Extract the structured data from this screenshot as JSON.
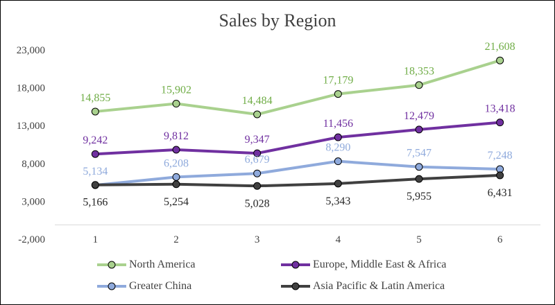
{
  "chart_data": {
    "type": "line",
    "title": "Sales by Region",
    "x": [
      "1",
      "2",
      "3",
      "4",
      "5",
      "6"
    ],
    "ylim": [
      -2000,
      23000
    ],
    "yticks": [
      "-2,000",
      "3,000",
      "8,000",
      "13,000",
      "18,000",
      "23,000"
    ],
    "ytick_values": [
      -2000,
      3000,
      8000,
      13000,
      18000,
      23000
    ],
    "grid": false,
    "legend_position": "bottom",
    "series": [
      {
        "name": "North America",
        "color": "#a9d18e",
        "label_color": "#70ad47",
        "values": [
          14855,
          15902,
          14484,
          17179,
          18353,
          21608
        ],
        "labels": [
          "14,855",
          "15,902",
          "14,484",
          "17,179",
          "18,353",
          "21,608"
        ]
      },
      {
        "name": "Europe, Middle East & Africa",
        "color": "#7030a0",
        "label_color": "#7030a0",
        "values": [
          9242,
          9812,
          9347,
          11456,
          12479,
          13418
        ],
        "labels": [
          "9,242",
          "9,812",
          "9,347",
          "11,456",
          "12,479",
          "13,418"
        ]
      },
      {
        "name": "Greater China",
        "color": "#8faadc",
        "label_color": "#8faadc",
        "values": [
          5134,
          6208,
          6679,
          8290,
          7547,
          7248
        ],
        "labels": [
          "5,134",
          "6,208",
          "6,679",
          "8,290",
          "7,547",
          "7,248"
        ]
      },
      {
        "name": "Asia Pacific & Latin America",
        "color": "#404040",
        "label_color": "#262626",
        "values": [
          5166,
          5254,
          5028,
          5343,
          5955,
          6431
        ],
        "labels": [
          "5,166",
          "5,254",
          "5,028",
          "5,343",
          "5,955",
          "6,431"
        ]
      }
    ]
  }
}
